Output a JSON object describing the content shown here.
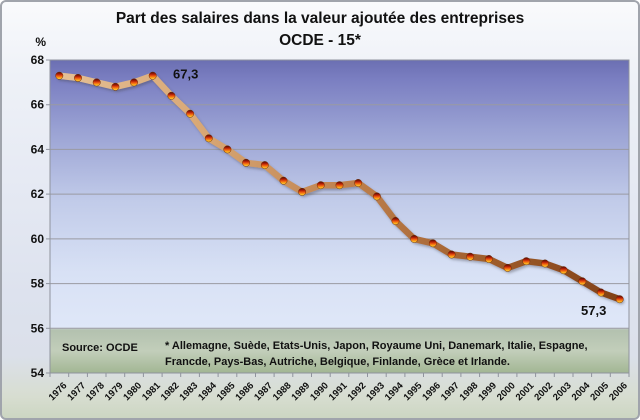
{
  "header": {
    "title": "Part des salaires dans la valeur ajoutée des entreprises",
    "subtitle": "OCDE - 15*"
  },
  "y_axis": {
    "unit_label": "%"
  },
  "footer": {
    "source_label": "Source: OCDE",
    "footnote_line1": "* Allemagne, Suède, Etats-Unis, Japon, Royaume Uni, Danemark, Italie, Espagne,",
    "footnote_line2": "Francde, Pays-Bas, Autriche, Belgique, Finlande, Grèce et Irlande."
  },
  "chart_data": {
    "type": "line",
    "title": "Part des salaires dans la valeur ajoutée des entreprises",
    "subtitle": "OCDE - 15*",
    "ylabel": "%",
    "x": [
      1976,
      1977,
      1978,
      1979,
      1980,
      1981,
      1982,
      1983,
      1984,
      1985,
      1986,
      1987,
      1988,
      1989,
      1990,
      1991,
      1992,
      1993,
      1994,
      1995,
      1996,
      1997,
      1998,
      1999,
      2000,
      2001,
      2002,
      2003,
      2004,
      2005,
      2006
    ],
    "series": [
      {
        "name": "OCDE - 15*",
        "values": [
          67.3,
          67.2,
          67.0,
          66.8,
          67.0,
          67.3,
          66.4,
          65.6,
          64.5,
          64.0,
          63.4,
          63.3,
          62.6,
          62.1,
          62.4,
          62.4,
          62.5,
          61.9,
          60.8,
          60.0,
          59.8,
          59.3,
          59.2,
          59.1,
          58.7,
          59.0,
          58.9,
          58.6,
          58.1,
          57.6,
          57.3
        ]
      }
    ],
    "ylim": [
      54,
      68
    ],
    "y_ticks": [
      54,
      56,
      58,
      60,
      62,
      64,
      66,
      68
    ],
    "grid": true,
    "legend": false,
    "point_labels": [
      {
        "x": 1981,
        "text": "67,3"
      },
      {
        "x": 2006,
        "text": "57,3"
      }
    ],
    "colors": {
      "line_gradient": [
        "#e6c197",
        "#d9a977",
        "#c08350",
        "#a05e2c",
        "#7f3f15"
      ],
      "marker_gradient": [
        "#4a0d05",
        "#b01c06",
        "#ef5a10",
        "#fba919",
        "#ffd94f"
      ],
      "gridline": "#9a9aa2",
      "plot_bg_top": "#6b6fb2",
      "plot_bg_mid": "#d8e1f5",
      "plot_bg_bottom": "#a2b693",
      "label_color": "#111111"
    }
  }
}
